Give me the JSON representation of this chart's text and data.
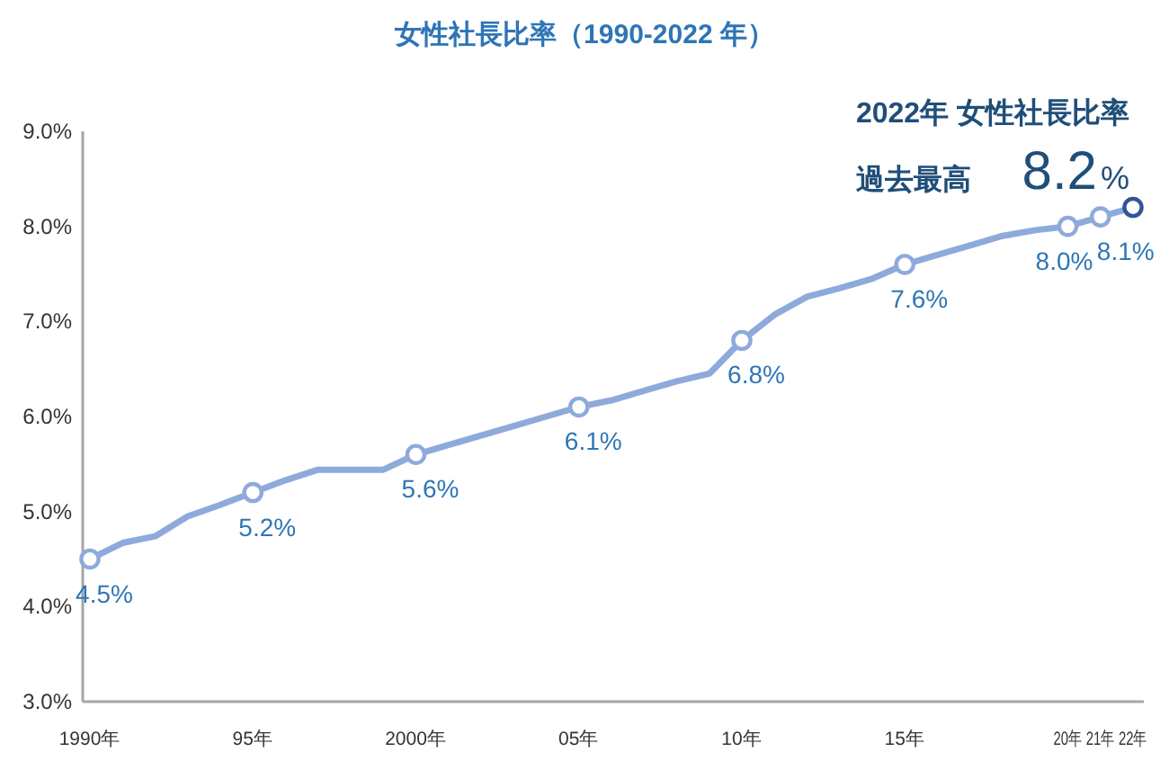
{
  "chart_data": {
    "type": "line",
    "title": "女性社長比率（1990-2022 年）",
    "categories": [
      "1990年",
      null,
      null,
      null,
      null,
      "95年",
      null,
      null,
      null,
      null,
      "2000年",
      null,
      null,
      null,
      null,
      "05年",
      null,
      null,
      null,
      null,
      "10年",
      null,
      null,
      null,
      null,
      "15年",
      null,
      null,
      null,
      null,
      "20年",
      "21年",
      "22年"
    ],
    "series": [
      {
        "color": "#8eaadb",
        "values": [
          4.5,
          4.67,
          4.74,
          4.95,
          5.07,
          5.2,
          5.33,
          5.44,
          5.44,
          5.44,
          5.6,
          5.7,
          5.8,
          5.9,
          6.0,
          6.1,
          6.17,
          6.27,
          6.37,
          6.45,
          6.8,
          7.07,
          7.26,
          7.35,
          7.45,
          7.6,
          7.7,
          7.8,
          7.9,
          7.96,
          8.0,
          8.1,
          8.2
        ]
      },
      {
        "type": "scatter",
        "marker": "circle",
        "colors": [
          "#8eaadb",
          "#8eaadb",
          "#8eaadb",
          "#8eaadb",
          "#8eaadb",
          "#8eaadb",
          "#8eaadb",
          "#8eaadb",
          "#2f5597"
        ],
        "x": [
          "1990年",
          "95年",
          "2000年",
          "05年",
          "10年",
          "15年",
          "20年",
          "21年",
          "22年"
        ],
        "values": [
          4.5,
          5.2,
          5.6,
          6.1,
          6.8,
          7.6,
          8.0,
          8.1,
          8.2
        ],
        "value_labels": [
          "4.5%",
          "5.2%",
          "5.6%",
          "6.1%",
          "6.8%",
          "7.6%",
          "8.0%",
          "8.1%",
          "8.2%"
        ]
      }
    ],
    "ylim": [
      3,
      9
    ],
    "yticks": [
      {
        "value": 3,
        "label": "3.0%"
      },
      {
        "value": 4,
        "label": "4.0%"
      },
      {
        "value": 5,
        "label": "5.0%"
      },
      {
        "value": 6,
        "label": "6.0%"
      },
      {
        "value": 7,
        "label": "7.0%"
      },
      {
        "value": 8,
        "label": "8.0%"
      },
      {
        "value": 9,
        "label": "9.0%"
      }
    ],
    "annotations": [
      "2022年 女性社長比率",
      "過去最高"
    ]
  }
}
